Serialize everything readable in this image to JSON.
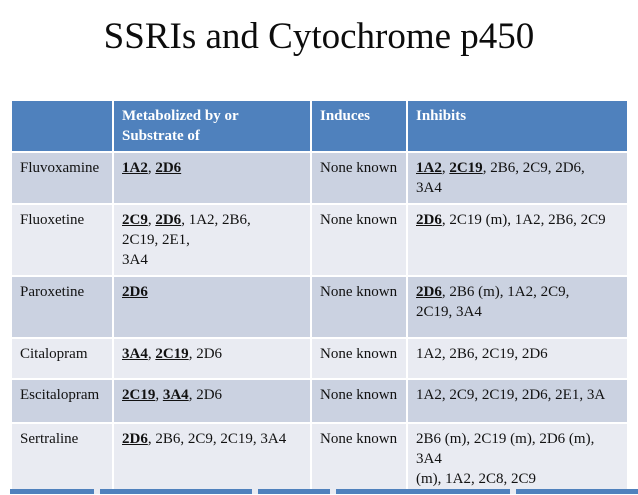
{
  "title": "SSRIs and Cytochrome p450",
  "colors": {
    "header_bg": "#4F81BD",
    "band_dark": "#CBD2E1",
    "band_light": "#E9EBF2",
    "header_text": "#FFFFFF",
    "body_text": "#111111"
  },
  "table": {
    "headers": [
      "",
      "Metabolized by or\nSubstrate of",
      "Induces",
      "Inhibits"
    ],
    "rows": [
      {
        "drug": "Fluvoxamine",
        "metabolized": [
          [
            [
              "1A2",
              1
            ],
            [
              ", ",
              0
            ],
            [
              "2D6",
              1
            ]
          ]
        ],
        "induces": "None known",
        "inhibits": [
          [
            [
              "1A2",
              1
            ],
            [
              ", ",
              0
            ],
            [
              "2C19",
              1
            ],
            [
              ", 2B6, 2C9, 2D6,",
              0
            ]
          ],
          [
            [
              "3A4",
              0
            ]
          ]
        ]
      },
      {
        "drug": "Fluoxetine",
        "metabolized": [
          [
            [
              "2C9",
              1
            ],
            [
              ", ",
              0
            ],
            [
              "2D6",
              1
            ],
            [
              ", 1A2, 2B6,",
              0
            ]
          ],
          [
            [
              "2C19, 2E1,",
              0
            ]
          ],
          [
            [
              "3A4",
              0
            ]
          ]
        ],
        "induces": "None known",
        "inhibits": [
          [
            [
              "2D6",
              1
            ],
            [
              ", 2C19 (m), 1A2, 2B6, 2C9",
              0
            ]
          ]
        ]
      },
      {
        "drug": "Paroxetine",
        "metabolized": [
          [
            [
              "2D6",
              1
            ]
          ]
        ],
        "induces": "None known",
        "inhibits": [
          [
            [
              "2D6",
              1
            ],
            [
              ", 2B6 (m), 1A2, 2C9,",
              0
            ]
          ],
          [
            [
              "2C19, 3A4",
              0
            ]
          ]
        ]
      },
      {
        "drug": "Citalopram",
        "metabolized": [
          [
            [
              "3A4",
              1
            ],
            [
              ", ",
              0
            ],
            [
              "2C19",
              1
            ],
            [
              ", 2D6",
              0
            ]
          ]
        ],
        "induces": "None known",
        "inhibits": [
          [
            [
              "1A2, 2B6, 2C19, 2D6",
              0
            ]
          ]
        ]
      },
      {
        "drug": "Escitalopram",
        "metabolized": [
          [
            [
              "2C19",
              1
            ],
            [
              ", ",
              0
            ],
            [
              "3A4",
              1
            ],
            [
              ", 2D6",
              0
            ]
          ]
        ],
        "induces": "None known",
        "inhibits": [
          [
            [
              "1A2, 2C9, 2C19, 2D6, 2E1, 3A",
              0
            ]
          ]
        ]
      },
      {
        "drug": "Sertraline",
        "metabolized": [
          [
            [
              "2D6",
              1
            ],
            [
              ", 2B6, 2C9, 2C19, 3A4",
              0
            ]
          ]
        ],
        "induces": "None known",
        "inhibits": [
          [
            [
              "2B6 (m), 2C19 (m), 2D6 (m),",
              0
            ]
          ],
          [
            [
              "3A4",
              0
            ]
          ],
          [
            [
              "(m), 1A2, 2C8, 2C9",
              0
            ]
          ]
        ]
      }
    ]
  }
}
